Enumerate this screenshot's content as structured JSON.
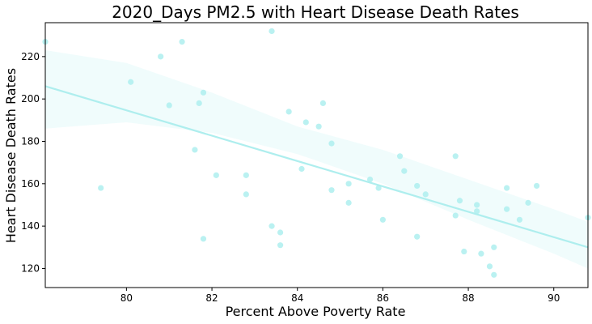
{
  "chart_data": {
    "type": "scatter",
    "title": "2020_Days PM2.5 with Heart Disease Death Rates",
    "xlabel": "Percent Above Poverty Rate",
    "ylabel": "Heart Disease Death Rates",
    "xlim": [
      78.1,
      90.8
    ],
    "ylim": [
      111,
      236
    ],
    "x_ticks": [
      80,
      82,
      84,
      86,
      88,
      90
    ],
    "y_ticks": [
      120,
      140,
      160,
      180,
      200,
      220
    ],
    "grid": false,
    "legend": "none",
    "point_color": "#aeeeee",
    "line_color": "#aeeeee",
    "band_color": "#aeeeee",
    "x": [
      78.1,
      79.4,
      80.1,
      80.8,
      81.0,
      81.3,
      81.6,
      81.7,
      81.8,
      81.8,
      82.1,
      82.8,
      82.8,
      83.4,
      83.4,
      83.6,
      83.6,
      83.8,
      84.1,
      84.2,
      84.5,
      84.6,
      84.8,
      84.8,
      85.2,
      85.2,
      85.7,
      85.9,
      86.0,
      86.4,
      86.5,
      86.8,
      86.8,
      87.0,
      87.7,
      87.7,
      87.8,
      87.9,
      88.2,
      88.2,
      88.3,
      88.5,
      88.6,
      88.6,
      88.9,
      88.9,
      89.2,
      89.4,
      89.6,
      90.8
    ],
    "y": [
      227,
      158,
      208,
      220,
      197,
      227,
      176,
      198,
      203,
      134,
      164,
      164,
      155,
      232,
      140,
      137,
      131,
      194,
      167,
      189,
      187,
      198,
      179,
      157,
      160,
      151,
      162,
      158,
      143,
      173,
      166,
      159,
      135,
      155,
      173,
      145,
      152,
      128,
      150,
      147,
      127,
      121,
      117,
      130,
      158,
      148,
      143,
      151,
      159,
      144
    ],
    "regression": {
      "x": [
        78.1,
        90.8
      ],
      "y": [
        206,
        130
      ]
    },
    "confidence_band": {
      "x": [
        78.1,
        80,
        82,
        84,
        86,
        88,
        90,
        90.8
      ],
      "lower": [
        186,
        189,
        184,
        174,
        160,
        143,
        127,
        120
      ],
      "upper": [
        223,
        217,
        203,
        187,
        176,
        162,
        148,
        142
      ]
    }
  }
}
